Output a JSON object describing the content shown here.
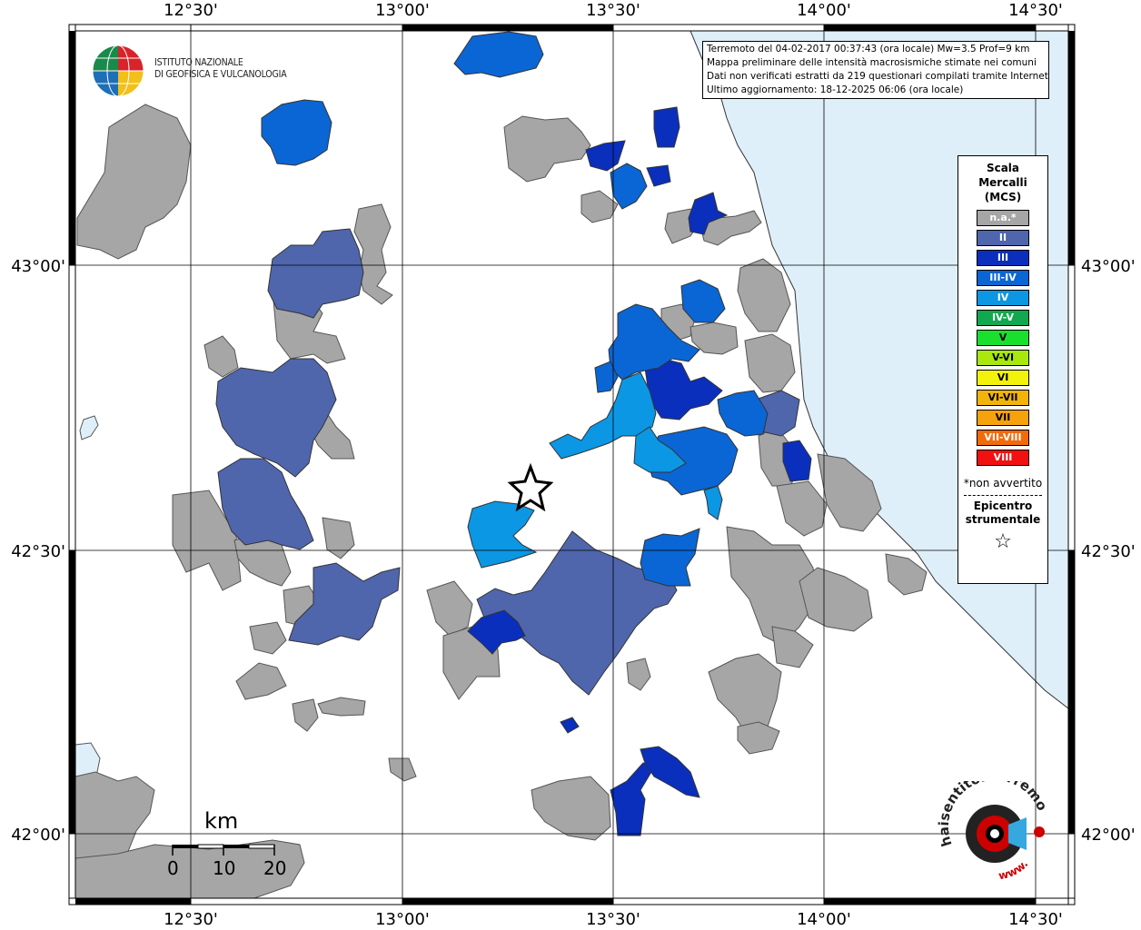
{
  "map": {
    "longitude_labels": [
      "12°30'",
      "13°00'",
      "13°30'",
      "14°00'",
      "14°30'"
    ],
    "latitude_labels": [
      "43°00'",
      "42°30'",
      "42°00'"
    ]
  },
  "info": {
    "line1": "Terremoto del 04-02-2017 00:37:43 (ora locale) Mw=3.5 Prof=9 km",
    "line2": "Mappa preliminare delle intensità macrosismiche stimate nei comuni",
    "line3": "Dati non verificati estratti da 219 questionari compilati tramite Internet.",
    "line4": "Ultimo aggiornamento: 18-12-2025 06:06 (ora locale)"
  },
  "logo": {
    "line1": "ISTITUTO NAZIONALE",
    "line2": "DI GEOFISICA E VULCANOLOGIA"
  },
  "legend": {
    "title_line1": "Scala",
    "title_line2": "Mercalli",
    "title_line3": "(MCS)",
    "items": [
      {
        "label": "n.a.*",
        "color": "#a6a6a6"
      },
      {
        "label": "II",
        "color": "#4f66ad"
      },
      {
        "label": "III",
        "color": "#0a2fbd"
      },
      {
        "label": "III-IV",
        "color": "#0a66d4"
      },
      {
        "label": "IV",
        "color": "#0b97e3"
      },
      {
        "label": "IV-V",
        "color": "#12a84f"
      },
      {
        "label": "V",
        "color": "#18e02c"
      },
      {
        "label": "V-VI",
        "color": "#a8e80c"
      },
      {
        "label": "VI",
        "color": "#f2f20a"
      },
      {
        "label": "VI-VII",
        "color": "#f2b40a"
      },
      {
        "label": "VII",
        "color": "#f5a20d"
      },
      {
        "label": "VII-VIII",
        "color": "#f26a0a"
      },
      {
        "label": "VIII",
        "color": "#f21010"
      }
    ],
    "note": "*non avvertito",
    "epicenter_line1": "Epicentro",
    "epicenter_line2": "strumentale",
    "epicenter_symbol": "☆"
  },
  "scale": {
    "unit": "km",
    "labels": [
      "0",
      "10",
      "20"
    ]
  },
  "hsit_logo": {
    "text": "haisentitoilterremoto.it",
    "prefix": "www."
  },
  "colors": {
    "sea": "#dfeffa",
    "na": "#a6a6a6",
    "ii": "#4f66ad",
    "iii": "#0a2fbd",
    "iiiiv": "#0a66d4",
    "iv": "#0b97e3"
  }
}
